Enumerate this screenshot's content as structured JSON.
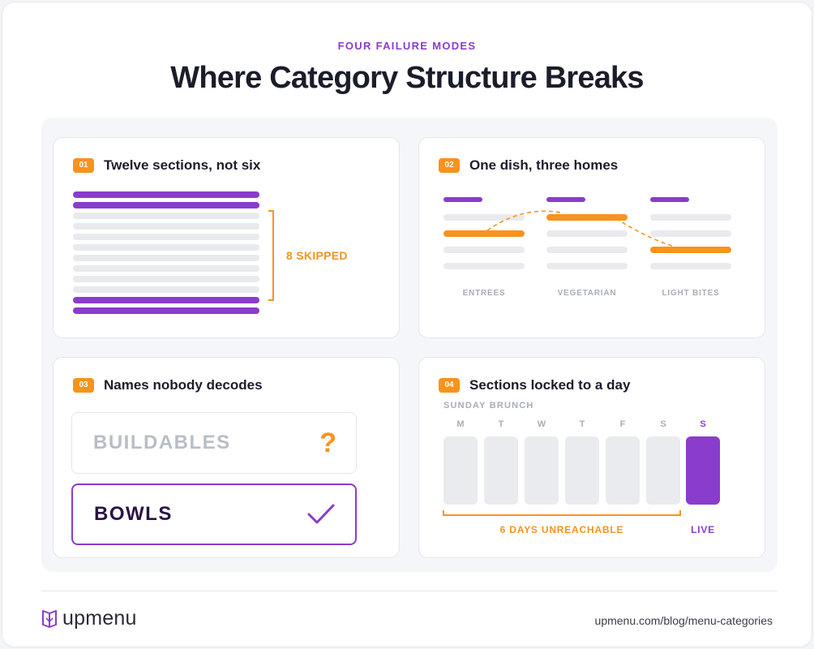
{
  "header": {
    "eyebrow": "FOUR FAILURE MODES",
    "title": "Where Category Structure Breaks"
  },
  "colors": {
    "purple": "#8a3ccd",
    "orange": "#f7931e",
    "gray": "#e8eaee",
    "dark": "#1c1d2b"
  },
  "cards": [
    {
      "number": "01",
      "title": "Twelve sections, not six",
      "annotation": "8 SKIPPED",
      "total_sections": 12,
      "skipped_sections": 8
    },
    {
      "number": "02",
      "title": "One dish, three homes",
      "columns": [
        "ENTREES",
        "VEGETARIAN",
        "LIGHT BITES"
      ]
    },
    {
      "number": "03",
      "title": "Names nobody decodes",
      "bad_name": "BUILDABLES",
      "bad_mark": "?",
      "good_name": "BOWLS"
    },
    {
      "number": "04",
      "title": "Sections locked to a day",
      "section_label": "SUNDAY BRUNCH",
      "days": [
        "M",
        "T",
        "W",
        "T",
        "F",
        "S",
        "S"
      ],
      "unreachable_label": "6 DAYS UNREACHABLE",
      "live_label": "LIVE"
    }
  ],
  "footer": {
    "logo_text": "upmenu",
    "url": "upmenu.com/blog/menu-categories"
  }
}
